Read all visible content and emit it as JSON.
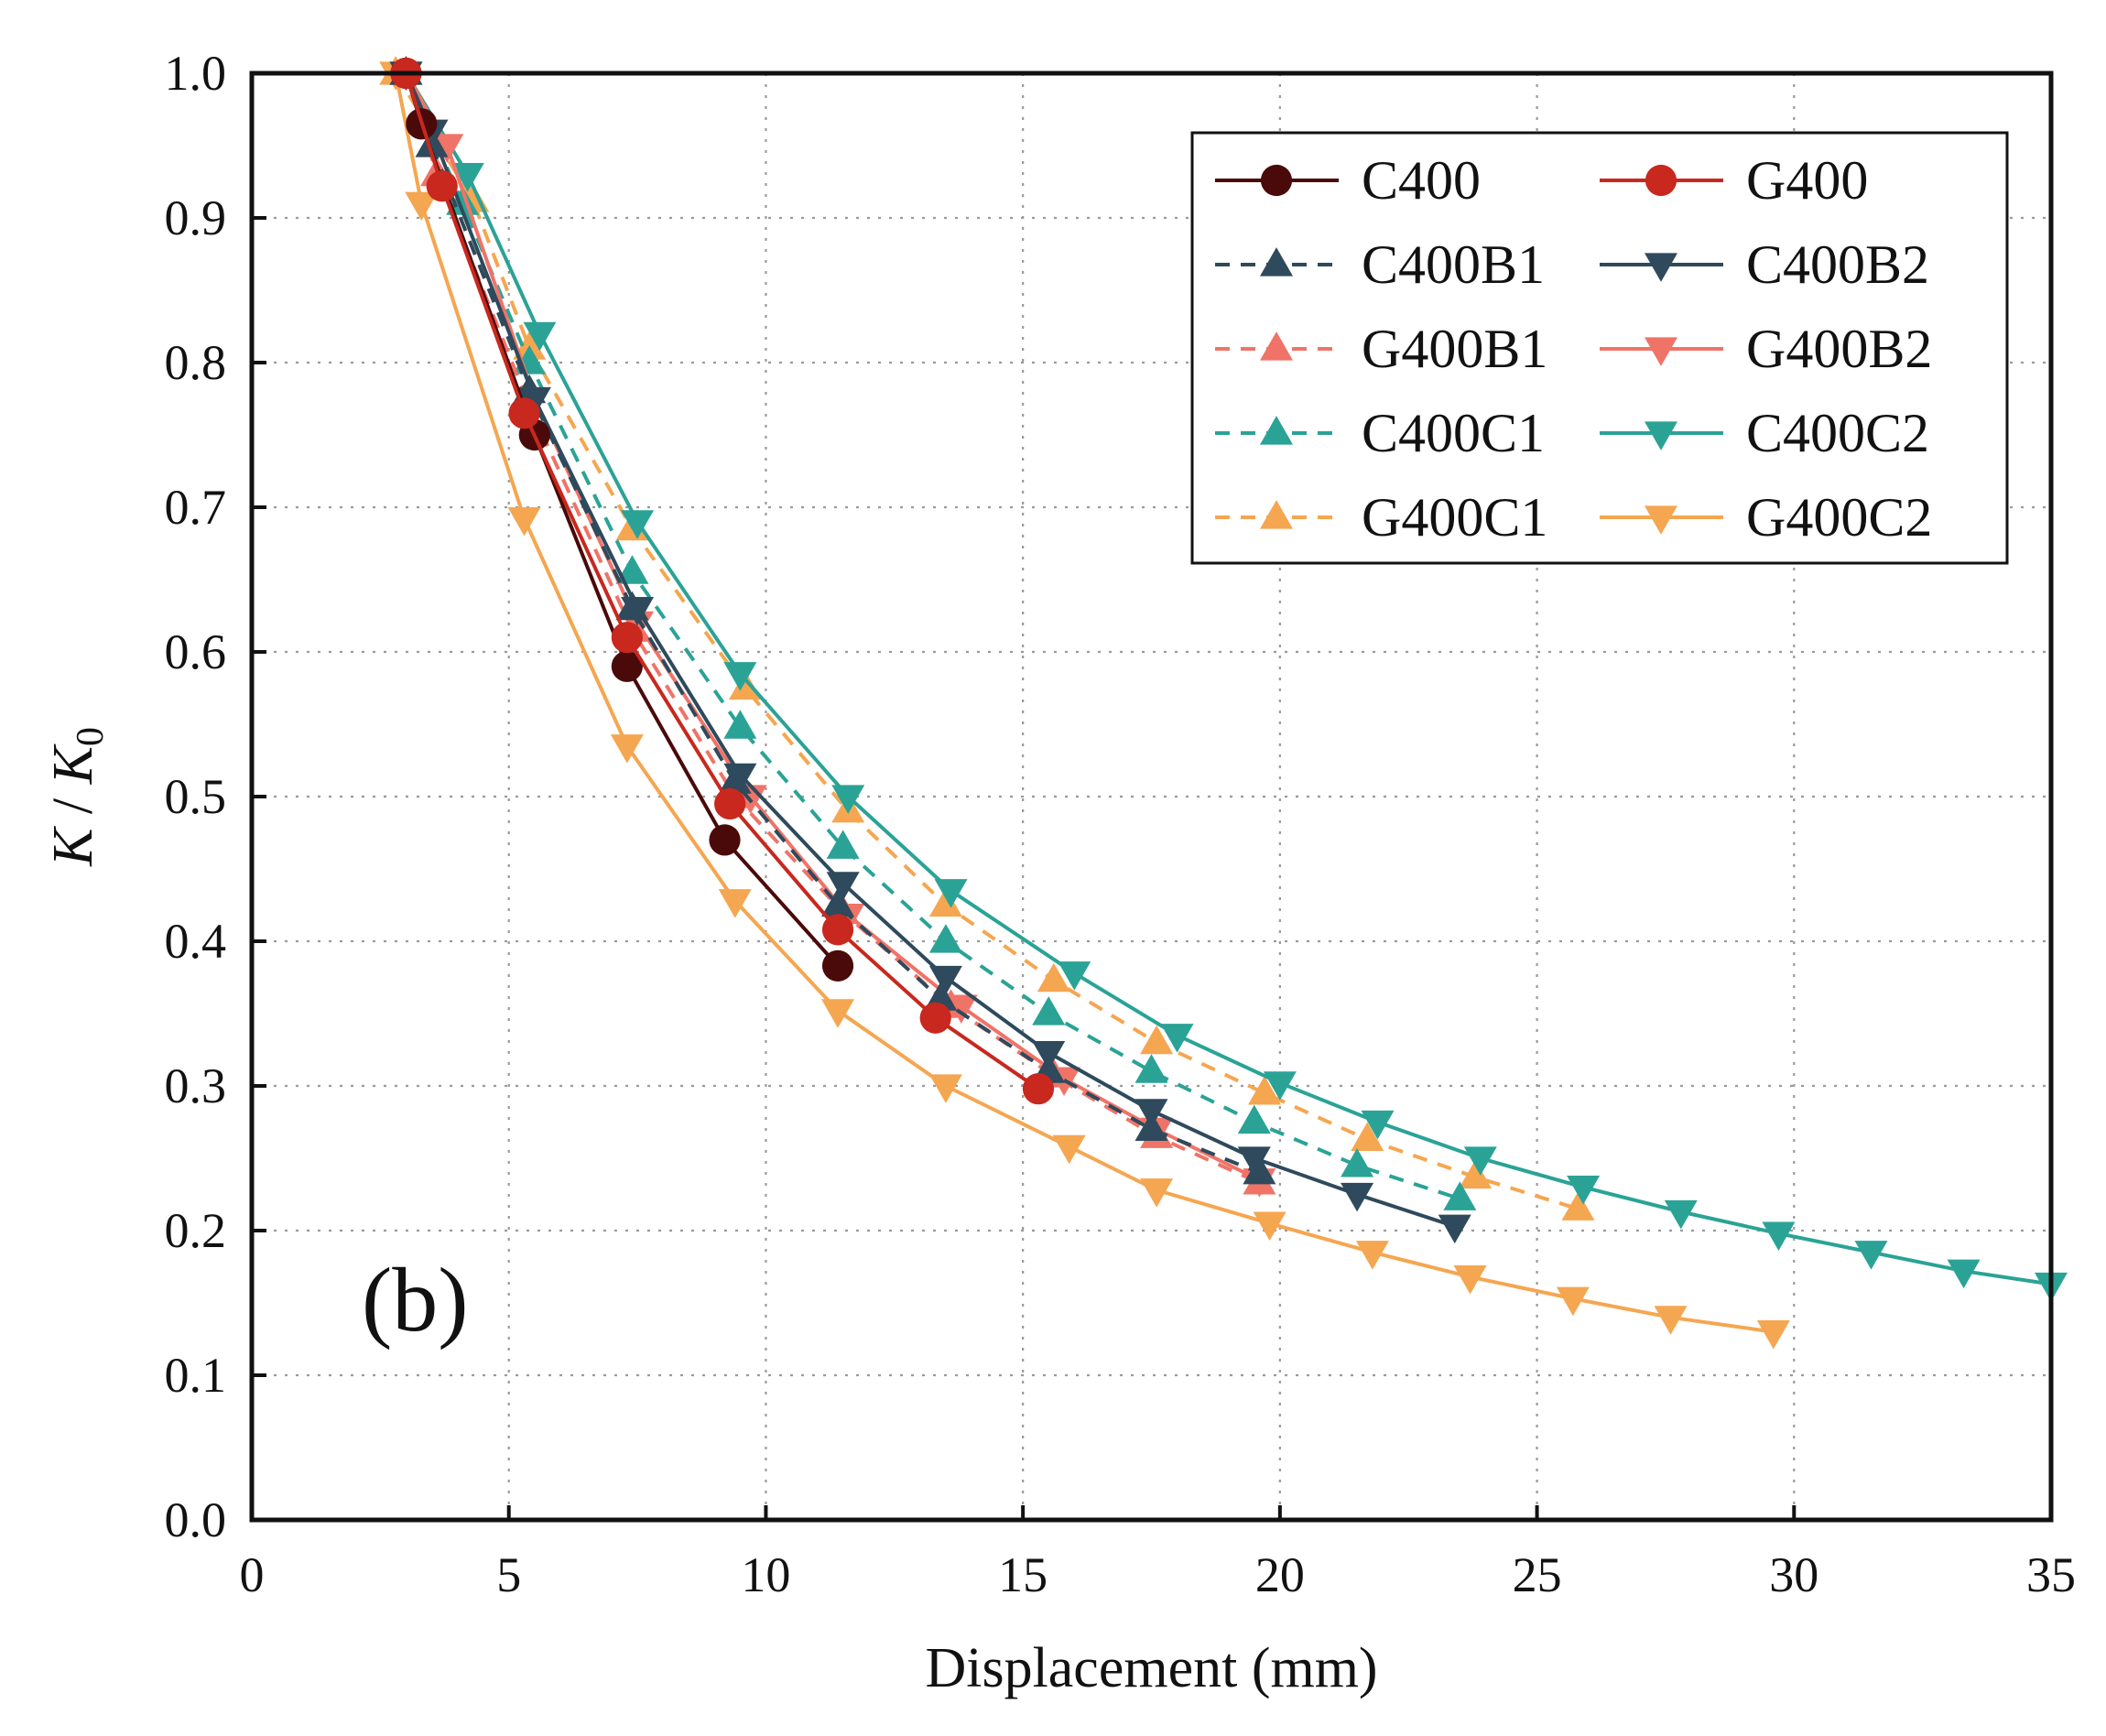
{
  "chart_data": {
    "type": "line",
    "panel_label": "(b)",
    "xlabel": "Displacement (mm)",
    "ylabel": {
      "main": "K",
      "sep": " / ",
      "sub_base": "K",
      "sub": "0"
    },
    "xlim": [
      0,
      35
    ],
    "ylim": [
      0,
      1
    ],
    "xticks": [
      0,
      5,
      10,
      15,
      20,
      25,
      30,
      35
    ],
    "yticks": [
      "0.0",
      "0.1",
      "0.2",
      "0.3",
      "0.4",
      "0.5",
      "0.6",
      "0.7",
      "0.8",
      "0.9",
      "1.0"
    ],
    "grid": true,
    "legend_position": "top-right",
    "series": [
      {
        "name": "C400",
        "color": "#4a0a0a",
        "marker": "circle",
        "dash": "solid",
        "x": [
          3.0,
          3.3,
          5.5,
          7.3,
          9.2,
          11.4
        ],
        "y": [
          1.0,
          0.965,
          0.75,
          0.59,
          0.47,
          0.383
        ]
      },
      {
        "name": "G400",
        "color": "#c8281e",
        "marker": "circle",
        "dash": "solid",
        "x": [
          3.0,
          3.7,
          5.3,
          7.3,
          9.3,
          11.4,
          13.3,
          15.3
        ],
        "y": [
          1.0,
          0.922,
          0.765,
          0.61,
          0.495,
          0.408,
          0.347,
          0.298
        ]
      },
      {
        "name": "C400B1",
        "color": "#2e4a5c",
        "marker": "triangle-up",
        "dash": "dash",
        "x": [
          3.0,
          3.5,
          5.4,
          7.4,
          9.4,
          11.4,
          13.4,
          15.5,
          17.5,
          19.6
        ],
        "y": [
          1.0,
          0.95,
          0.78,
          0.63,
          0.51,
          0.425,
          0.36,
          0.31,
          0.27,
          0.24
        ]
      },
      {
        "name": "C400B2",
        "color": "#2e4a5c",
        "marker": "triangle-down",
        "dash": "solid",
        "x": [
          3.0,
          3.5,
          5.5,
          7.5,
          9.5,
          11.5,
          13.5,
          15.5,
          17.5,
          19.5,
          21.5,
          23.4
        ],
        "y": [
          1.0,
          0.96,
          0.775,
          0.63,
          0.515,
          0.44,
          0.375,
          0.323,
          0.283,
          0.25,
          0.225,
          0.203
        ]
      },
      {
        "name": "G400B1",
        "color": "#f07368",
        "marker": "triangle-up",
        "dash": "dash",
        "x": [
          3.0,
          3.6,
          5.4,
          7.4,
          9.4,
          11.5,
          13.6,
          15.6,
          17.6,
          19.6
        ],
        "y": [
          1.0,
          0.93,
          0.77,
          0.615,
          0.5,
          0.42,
          0.355,
          0.307,
          0.265,
          0.233
        ]
      },
      {
        "name": "G400B2",
        "color": "#f07368",
        "marker": "triangle-down",
        "dash": "solid",
        "x": [
          3.0,
          3.8,
          5.5,
          7.5,
          9.7,
          11.6,
          13.8,
          15.8,
          17.6,
          19.6
        ],
        "y": [
          1.0,
          0.95,
          0.775,
          0.62,
          0.5,
          0.418,
          0.355,
          0.305,
          0.27,
          0.235
        ]
      },
      {
        "name": "C400C1",
        "color": "#2aa396",
        "marker": "triangle-up",
        "dash": "dash",
        "x": [
          3.0,
          4.1,
          5.4,
          7.4,
          9.5,
          11.5,
          13.5,
          15.5,
          17.5,
          19.5,
          21.5,
          23.5
        ],
        "y": [
          1.0,
          0.91,
          0.8,
          0.655,
          0.548,
          0.465,
          0.4,
          0.35,
          0.31,
          0.275,
          0.245,
          0.222
        ]
      },
      {
        "name": "C400C2",
        "color": "#2aa396",
        "marker": "triangle-down",
        "dash": "solid",
        "x": [
          3.0,
          4.2,
          5.6,
          7.5,
          9.5,
          11.6,
          13.6,
          16.0,
          18.0,
          20.0,
          21.9,
          23.9,
          25.9,
          27.8,
          29.7,
          31.5,
          33.3,
          35.0
        ],
        "y": [
          1.0,
          0.93,
          0.82,
          0.69,
          0.585,
          0.5,
          0.435,
          0.378,
          0.335,
          0.302,
          0.275,
          0.25,
          0.23,
          0.213,
          0.198,
          0.185,
          0.172,
          0.163
        ]
      },
      {
        "name": "G400C1",
        "color": "#f5a650",
        "marker": "triangle-up",
        "dash": "dash",
        "x": [
          2.8,
          4.3,
          5.4,
          7.4,
          9.6,
          11.6,
          13.5,
          15.6,
          17.6,
          19.7,
          21.7,
          23.8,
          25.8
        ],
        "y": [
          1.0,
          0.912,
          0.81,
          0.685,
          0.575,
          0.49,
          0.425,
          0.373,
          0.33,
          0.295,
          0.263,
          0.237,
          0.215
        ]
      },
      {
        "name": "G400C2",
        "color": "#f5a650",
        "marker": "triangle-down",
        "dash": "solid",
        "x": [
          2.8,
          3.3,
          5.3,
          7.3,
          9.4,
          11.4,
          13.5,
          15.9,
          17.6,
          19.8,
          21.8,
          23.7,
          25.7,
          27.6,
          29.6
        ],
        "y": [
          1.0,
          0.91,
          0.692,
          0.535,
          0.428,
          0.352,
          0.3,
          0.258,
          0.228,
          0.205,
          0.185,
          0.168,
          0.153,
          0.14,
          0.13
        ]
      }
    ]
  }
}
